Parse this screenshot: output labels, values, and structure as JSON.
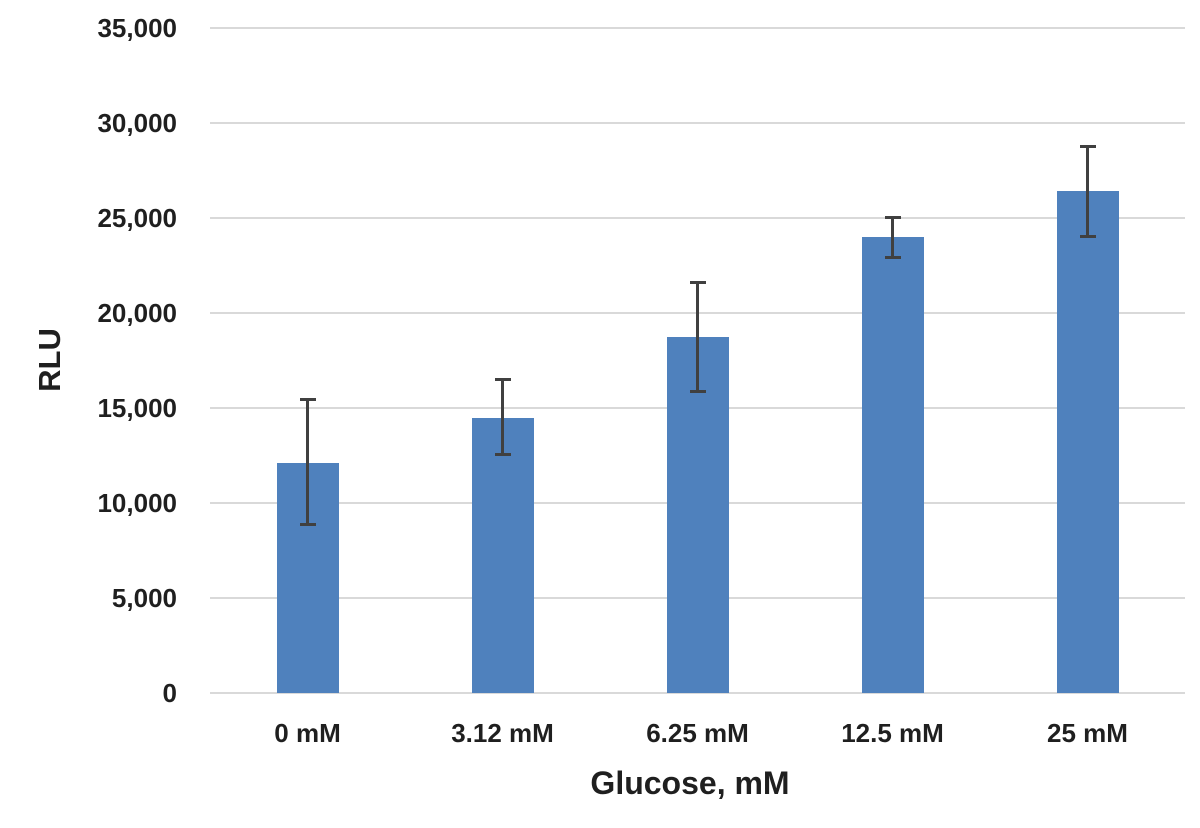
{
  "chart_data": {
    "type": "bar",
    "title": "",
    "xlabel": "Glucose, mM",
    "ylabel": "RLU",
    "categories": [
      "0 mM",
      "3.12 mM",
      "6.25 mM",
      "12.5 mM",
      "25 mM"
    ],
    "values": [
      12100,
      14500,
      18750,
      24000,
      26400
    ],
    "error_plus": [
      3300,
      1950,
      2850,
      1000,
      2350
    ],
    "error_minus": [
      3200,
      1900,
      2850,
      1050,
      2350
    ],
    "ylim": [
      0,
      35000
    ],
    "ytick_values": [
      0,
      5000,
      10000,
      15000,
      20000,
      25000,
      30000,
      35000
    ],
    "ytick_labels": [
      "0",
      "5,000",
      "10,000",
      "15,000",
      "20,000",
      "25,000",
      "30,000",
      "35,000"
    ],
    "grid": true,
    "legend": false,
    "colors": {
      "bar_fill": "#4F81BD",
      "error_bar": "#404040",
      "gridline": "#D9D9D9",
      "text": "#1F1F1F",
      "background": "#FFFFFF"
    }
  }
}
